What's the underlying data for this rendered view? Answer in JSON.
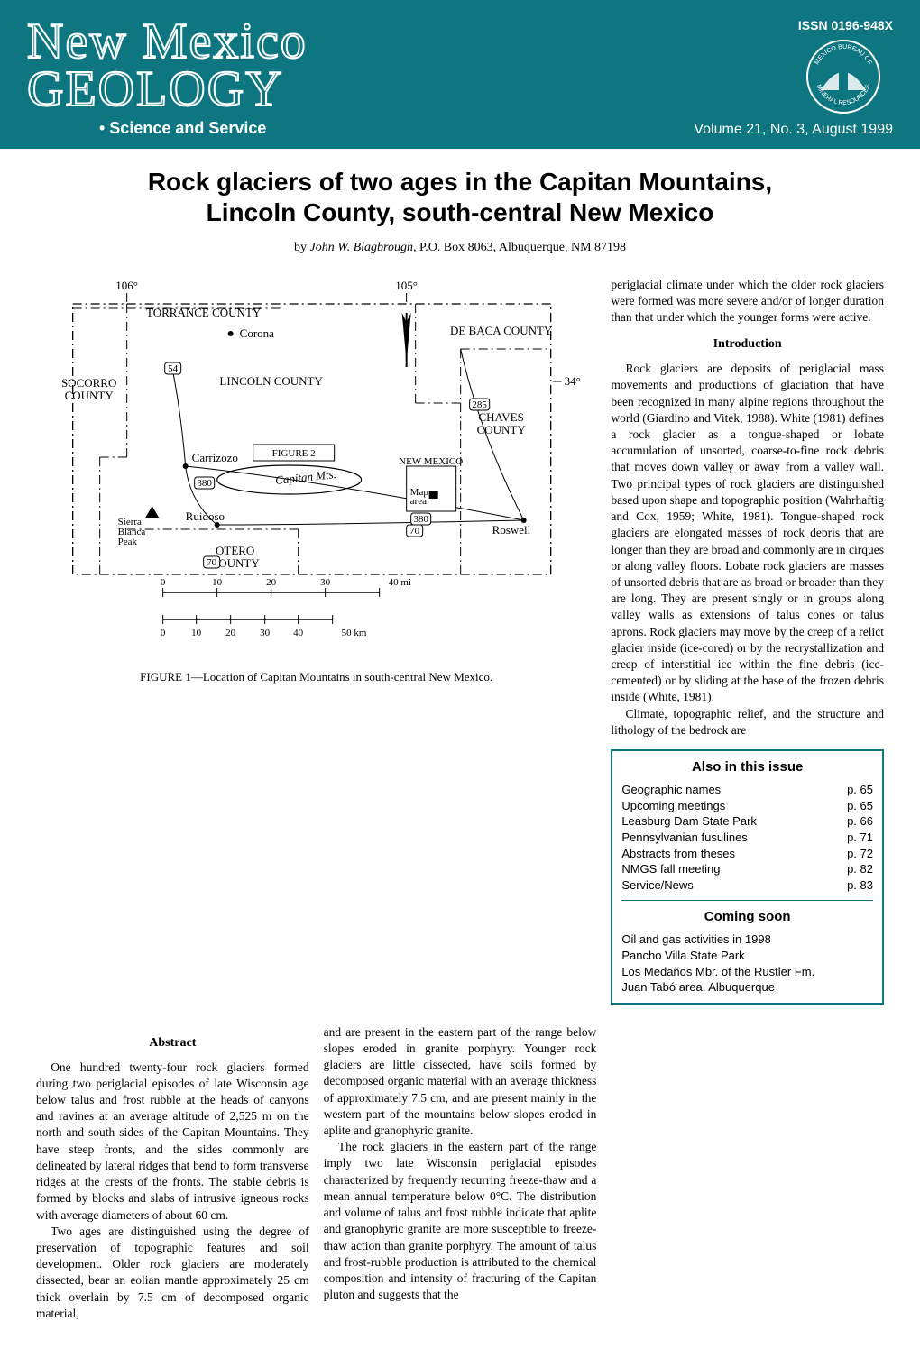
{
  "header": {
    "issn": "ISSN 0196-948X",
    "journal_line1": "New Mexico",
    "journal_line2": "GEOLOGY",
    "tagline": "• Science and Service",
    "volume_info": "Volume 21, No. 3, August 1999",
    "seal_top": "MEXICO BUREAU OF",
    "seal_bottom": "MINERAL RESOURCES",
    "bg_color": "#0d7680",
    "text_color": "#ffffff"
  },
  "article": {
    "title_line1": "Rock glaciers of two ages in the Capitan Mountains,",
    "title_line2": "Lincoln County, south-central New Mexico",
    "byline_prefix": "by ",
    "author": "John W. Blagbrough",
    "author_suffix": ", P.O. Box 8063, Albuquerque, NM 87198"
  },
  "figure": {
    "caption": "FIGURE 1—Location of Capitan Mountains in south-central New Mexico.",
    "lon_106": "106°",
    "lon_105": "105°",
    "lat_34": "34°",
    "counties": {
      "torrance": "TORRANCE COUNTY",
      "debaca": "DE BACA COUNTY",
      "socorro": "SOCORRO COUNTY",
      "lincoln": "LINCOLN COUNTY",
      "chaves": "CHAVES COUNTY",
      "otero": "OTERO COUNTY"
    },
    "places": {
      "corona": "Corona",
      "carrizozo": "Carrizozo",
      "capitan": "Capitan Mts.",
      "sierra": "Sierra Blanca Peak",
      "ruidoso": "Ruidoso",
      "roswell": "Roswell",
      "figure2": "FIGURE 2",
      "nm": "NEW MEXICO",
      "map_area": "Map area"
    },
    "routes": {
      "r54": "54",
      "r380": "380",
      "r285": "285",
      "r70": "70",
      "r70b": "70"
    },
    "scale": {
      "mi_ticks": [
        "0",
        "10",
        "20",
        "30",
        "40 mi"
      ],
      "km_ticks": [
        "0",
        "10",
        "20",
        "30",
        "40",
        "50 km"
      ]
    },
    "line_color": "#000000",
    "fill_color": "#ffffff"
  },
  "abstract": {
    "heading": "Abstract",
    "para1": "One hundred twenty-four rock glaciers formed during two periglacial episodes of late Wisconsin age below talus and frost rubble at the heads of canyons and ravines at an average altitude of 2,525 m on the north and south sides of the Capitan Mountains. They have steep fronts, and the sides commonly are delineated by lateral ridges that bend to form transverse ridges at the crests of the fronts. The stable debris is formed by blocks and slabs of intrusive igneous rocks with average diameters of about 60 cm.",
    "para2": "Two ages are distinguished using the degree of preservation of topographic features and soil development. Older rock glaciers are moderately dissected, bear an eolian mantle approximately 25 cm thick overlain by 7.5 cm of decomposed organic material,"
  },
  "col2": {
    "para1": "and are present in the eastern part of the range below slopes eroded in granite porphyry. Younger rock glaciers are little dissected, have soils formed by decomposed organic material with an average thickness of approximately 7.5 cm, and are present mainly in the western part of the mountains below slopes eroded in aplite and granophyric granite.",
    "para2": "The rock glaciers in the eastern part of the range imply two late Wisconsin periglacial episodes characterized by frequently recurring freeze-thaw and a mean annual temperature below 0°C. The distribution and volume of talus and frost rubble indicate that aplite and granophyric granite are more susceptible to freeze-thaw action than granite porphyry. The amount of talus and frost-rubble production is attributed to the chemical composition and intensity of fracturing of the Capitan pluton and suggests that the"
  },
  "col3": {
    "top_para": "periglacial climate under which the older rock glaciers were formed was more severe and/or of longer duration than that under which the younger forms were active.",
    "intro_heading": "Introduction",
    "intro_para": "Rock glaciers are deposits of periglacial mass movements and productions of glaciation that have been recognized in many alpine regions throughout the world (Giardino and Vitek, 1988). White (1981) defines a rock glacier as a tongue-shaped or lobate accumulation of unsorted, coarse-to-fine rock debris that moves down valley or away from a valley wall. Two principal types of rock glaciers are distinguished based upon shape and topographic position (Wahrhaftig and Cox, 1959; White, 1981). Tongue-shaped rock glaciers are elongated masses of rock debris that are longer than they are broad and commonly are in cirques or along valley floors. Lobate rock glaciers are masses of unsorted debris that are as broad or broader than they are long. They are present singly or in groups along valley walls as extensions of talus cones or talus aprons. Rock glaciers may move by the creep of a relict glacier inside (ice-cored) or by the recrystallization and creep of interstitial ice within the fine debris (ice-cemented) or by sliding at the base of the frozen debris inside (White, 1981).",
    "intro_tail": "Climate, topographic relief, and the structure and lithology of the bedrock are"
  },
  "sidebar": {
    "border_color": "#0d7680",
    "also_heading": "Also in this issue",
    "items": [
      {
        "label": "Geographic names",
        "page": "p. 65"
      },
      {
        "label": "Upcoming meetings",
        "page": "p. 65"
      },
      {
        "label": "Leasburg Dam State Park",
        "page": "p. 66"
      },
      {
        "label": "Pennsylvanian fusulines",
        "page": "p. 71"
      },
      {
        "label": "Abstracts from theses",
        "page": "p. 72"
      },
      {
        "label": "NMGS fall meeting",
        "page": "p. 82"
      },
      {
        "label": "Service/News",
        "page": "p. 83"
      }
    ],
    "coming_heading": "Coming soon",
    "coming": [
      "Oil and gas activities in 1998",
      "Pancho Villa State Park",
      "Los Medaños Mbr. of the Rustler Fm.",
      "Juan Tabó area, Albuquerque"
    ]
  }
}
